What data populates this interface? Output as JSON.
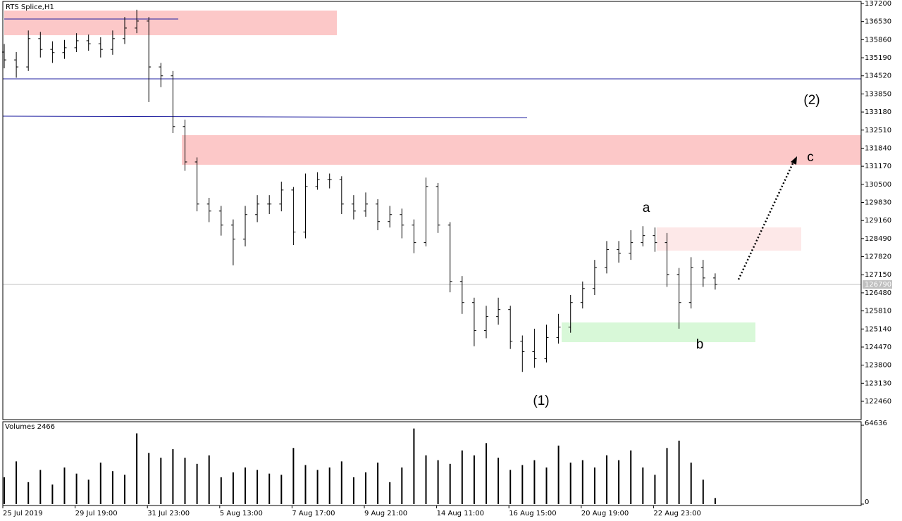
{
  "chart_data": [
    {
      "type": "ohlc",
      "title": "RTS Splice,H1",
      "open": [
        135400,
        135110,
        134850,
        135900,
        135500,
        135380,
        135560,
        135820,
        135710,
        135500,
        135900,
        136290,
        136550,
        134850,
        134520,
        132640,
        131330,
        129770,
        129510,
        128990,
        128470,
        129380,
        129770,
        129770,
        130290,
        128730,
        130420,
        130680,
        130680,
        129770,
        129510,
        129770,
        129120,
        129380,
        128990,
        128340,
        130420,
        128990,
        126900,
        126120,
        125080,
        125600,
        125860,
        124690,
        124300,
        124040,
        124820,
        125210,
        126120,
        126640,
        127420,
        128080,
        127950,
        128340,
        128600,
        128340,
        127160,
        126120,
        127420,
        127030
      ],
      "high": [
        135700,
        135400,
        136200,
        136150,
        135800,
        135850,
        136100,
        136050,
        135950,
        136200,
        136700,
        136970,
        136700,
        135000,
        134700,
        132900,
        131500,
        130000,
        129700,
        129200,
        129700,
        130100,
        130100,
        130600,
        130400,
        130900,
        130950,
        130900,
        130800,
        130100,
        130200,
        129950,
        129700,
        129600,
        129200,
        130750,
        130550,
        129100,
        127100,
        126300,
        126000,
        126300,
        126000,
        124900,
        125150,
        125300,
        125700,
        126400,
        126900,
        127700,
        128400,
        128400,
        128800,
        128950,
        128900,
        128700,
        127400,
        127800,
        127700,
        127200
      ],
      "low": [
        134800,
        134450,
        134700,
        135200,
        135000,
        135150,
        135400,
        135450,
        135200,
        135300,
        135700,
        136100,
        133550,
        134100,
        132400,
        131000,
        129500,
        129100,
        128600,
        127500,
        128200,
        129100,
        129400,
        129500,
        128250,
        128500,
        130300,
        130350,
        129400,
        129200,
        129300,
        128800,
        128900,
        128500,
        127950,
        128200,
        128700,
        126500,
        125700,
        124500,
        124800,
        125300,
        124400,
        123550,
        123700,
        123900,
        124600,
        125000,
        125900,
        126400,
        127200,
        127600,
        127700,
        128200,
        128000,
        126700,
        125150,
        125900,
        126700,
        126600
      ],
      "close": [
        135110,
        134850,
        135900,
        135500,
        135380,
        135560,
        135820,
        135710,
        135500,
        135900,
        136290,
        136550,
        134850,
        134520,
        132640,
        131330,
        129770,
        129510,
        128990,
        128470,
        129380,
        129770,
        129770,
        130290,
        128730,
        130420,
        130680,
        130680,
        129770,
        129510,
        129770,
        129120,
        129380,
        128990,
        128340,
        130420,
        128990,
        126900,
        126120,
        125080,
        125600,
        125860,
        124690,
        124300,
        124040,
        124820,
        125210,
        126120,
        126640,
        127420,
        128080,
        127950,
        128340,
        128600,
        128340,
        127160,
        126120,
        127420,
        127030,
        126790
      ],
      "color": "#000000",
      "ylim": [
        121782,
        137278
      ],
      "yticks": [
        137200,
        136530,
        135860,
        135190,
        134520,
        133850,
        133180,
        132510,
        131840,
        131170,
        130500,
        129830,
        129160,
        128490,
        127820,
        127150,
        126480,
        125810,
        125140,
        124470,
        123800,
        123130,
        122460
      ],
      "last_price": 126790,
      "annotations": [
        "(1)",
        "(2)",
        "a",
        "b",
        "c"
      ]
    },
    {
      "type": "bar",
      "title": "Volumes 2466",
      "categories": [
        "25 Jul 2019",
        null,
        null,
        null,
        null,
        null,
        "29 Jul 19:00",
        null,
        null,
        null,
        null,
        null,
        "31 Jul 23:00",
        null,
        null,
        null,
        null,
        null,
        "5 Aug 13:00",
        null,
        null,
        null,
        null,
        null,
        "7 Aug 17:00",
        null,
        null,
        null,
        null,
        null,
        "9 Aug 21:00",
        null,
        null,
        null,
        null,
        null,
        "14 Aug 11:00",
        null,
        null,
        null,
        null,
        null,
        "16 Aug 15:00",
        null,
        null,
        null,
        null,
        null,
        "20 Aug 19:00",
        null,
        null,
        null,
        null,
        null,
        "22 Aug 23:00",
        null,
        null,
        null,
        null,
        null
      ],
      "values": [
        22000,
        35000,
        18000,
        28000,
        16000,
        30000,
        25000,
        20000,
        34000,
        27000,
        24000,
        58000,
        42000,
        38000,
        45000,
        38000,
        33000,
        40000,
        22000,
        26000,
        30000,
        28000,
        25000,
        24000,
        46000,
        32000,
        28000,
        30000,
        35000,
        22000,
        26000,
        34000,
        18000,
        30000,
        62000,
        40000,
        36000,
        33000,
        44000,
        40000,
        50000,
        38000,
        28000,
        32000,
        36000,
        30000,
        48000,
        34000,
        36000,
        30000,
        40000,
        36000,
        44000,
        30000,
        24000,
        46000,
        52000,
        34000,
        20000,
        5000
      ],
      "color": "#000000",
      "ylim": [
        0,
        64636
      ],
      "yticks": [
        0,
        64636
      ]
    }
  ]
}
